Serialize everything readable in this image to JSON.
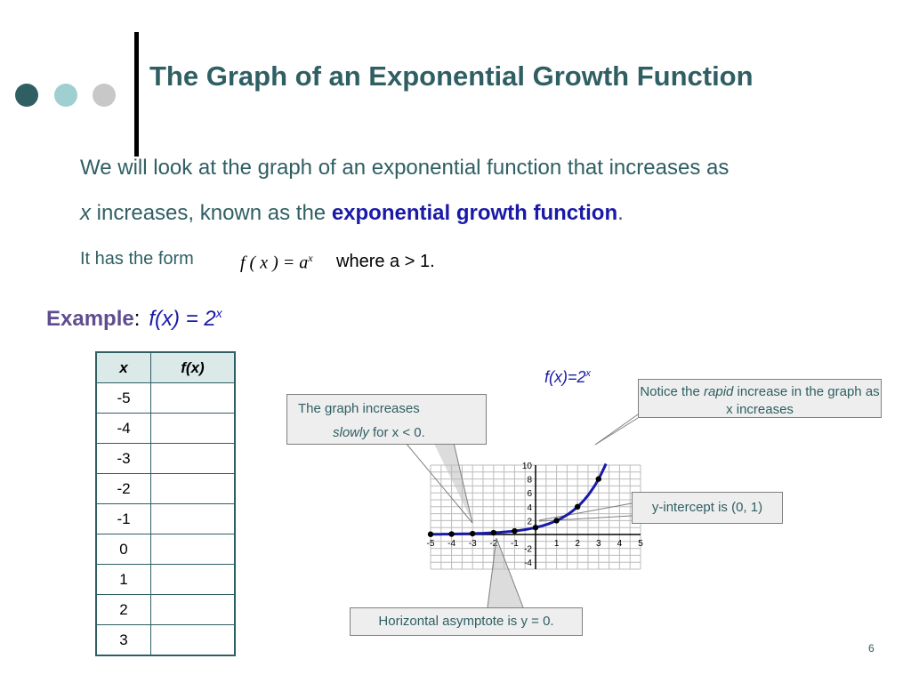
{
  "slide": {
    "title": "The Graph of an Exponential Growth Function",
    "intro_line1": "We will look at the graph of an exponential function that increases as",
    "intro_line2_x": "x",
    "intro_line2_text": " increases, known as the ",
    "intro_line2_emphasis": "exponential growth function",
    "intro_line2_end": ".",
    "form_label": "It has the form",
    "form_formula": "f ( x ) = a",
    "form_formula_exp": "x",
    "form_condition": "where a > 1.",
    "example_label": "Example",
    "example_colon": ":",
    "example_function": "f(x) = 2",
    "example_function_exp": "x",
    "page_number": "6",
    "colors": {
      "title": "#2f5f63",
      "emphasis": "#1a1aa8",
      "example": "#5f4d90",
      "curve": "#1a1aa8"
    }
  },
  "table": {
    "headers": [
      "x",
      "f(x)"
    ],
    "rows": [
      [
        "-5",
        ""
      ],
      [
        "-4",
        ""
      ],
      [
        "-3",
        ""
      ],
      [
        "-2",
        ""
      ],
      [
        "-1",
        ""
      ],
      [
        "0",
        ""
      ],
      [
        "1",
        ""
      ],
      [
        "2",
        ""
      ],
      [
        "3",
        ""
      ]
    ]
  },
  "callouts": {
    "slow_line1": "The graph increases",
    "slow_italic": "slowly",
    "slow_rest": " for x < 0.",
    "rapid_before": "Notice the ",
    "rapid_italic": "rapid",
    "rapid_after": " increase in the graph as x increases",
    "intercept": "y-intercept is (0, 1)",
    "asymptote": "Horizontal asymptote is y = 0."
  },
  "chart_data": {
    "type": "line",
    "title": "f(x)=2",
    "title_exp": "x",
    "function": "2^x",
    "xlim": [
      -5,
      5
    ],
    "ylim": [
      -5,
      10
    ],
    "x_ticks": [
      -5,
      -4,
      -3,
      -2,
      -1,
      1,
      2,
      3,
      4,
      5
    ],
    "y_ticks": [
      -4,
      -2,
      2,
      4,
      6,
      8,
      10
    ],
    "grid": true,
    "series": [
      {
        "points": [
          {
            "x": -5,
            "y": 0.03125
          },
          {
            "x": -4,
            "y": 0.0625
          },
          {
            "x": -3,
            "y": 0.125
          },
          {
            "x": -2,
            "y": 0.25
          },
          {
            "x": -1,
            "y": 0.5
          },
          {
            "x": 0,
            "y": 1
          },
          {
            "x": 1,
            "y": 2
          },
          {
            "x": 2,
            "y": 4
          },
          {
            "x": 3,
            "y": 8
          }
        ]
      }
    ]
  }
}
